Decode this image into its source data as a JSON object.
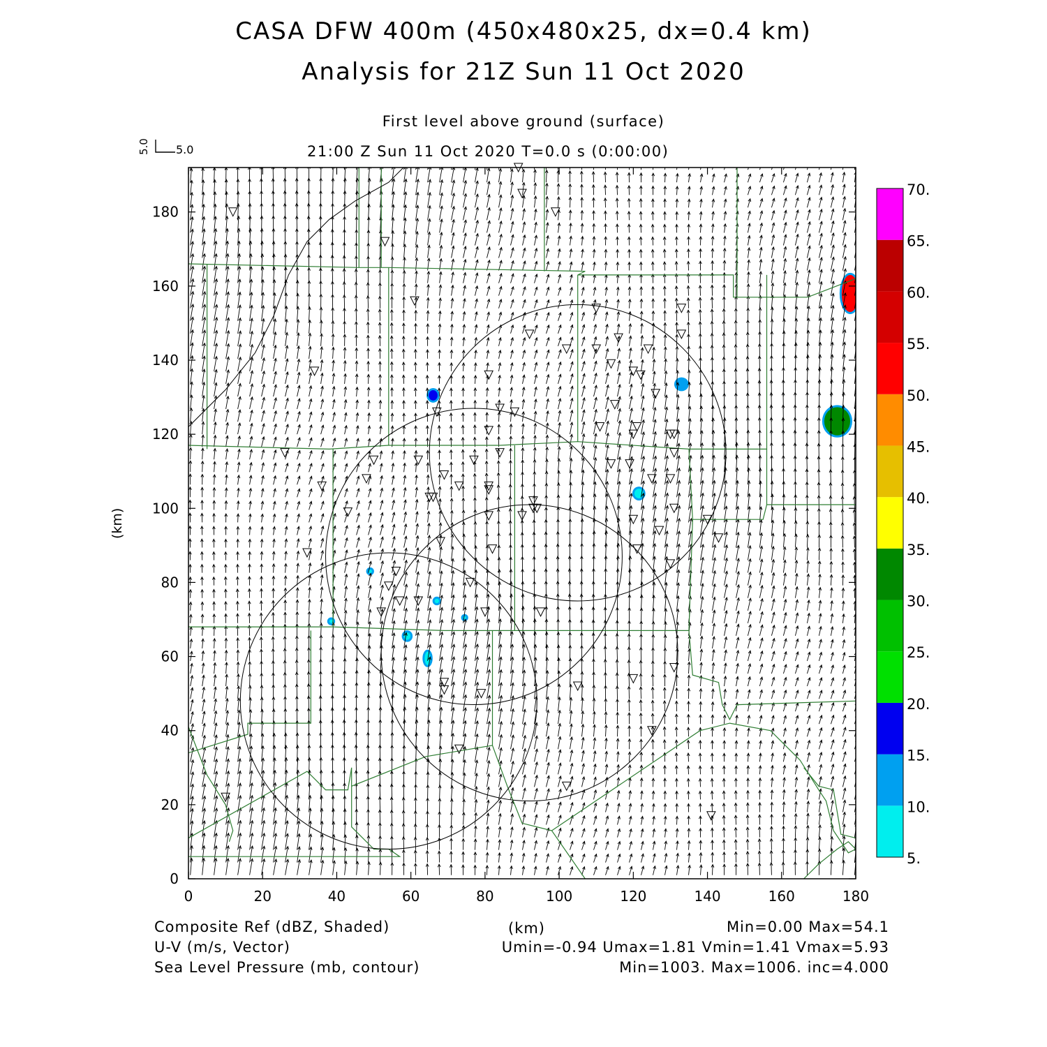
{
  "header": {
    "title": "CASA DFW 400m (450x480x25, dx=0.4 km)",
    "analysis": "Analysis for 21Z Sun 11 Oct 2020",
    "level": "First level above ground (surface)",
    "time_line": "21:00 Z Sun 11 Oct 2020   T=0.0 s (0:00:00)"
  },
  "vector_key": {
    "u_label": "5.0",
    "v_label": "5.0"
  },
  "footer": {
    "line1_left": "Composite Ref (dBZ, Shaded)",
    "line1_mid": "(km)",
    "line1_right": "Min=0.00 Max=54.1",
    "line2_left": "U-V (m/s, Vector)",
    "line2_right": "Umin=-0.94 Umax=1.81 Vmin=1.41 Vmax=5.93",
    "line3_left": "Sea Level Pressure (mb, contour)",
    "line3_right": "Min=1003. Max=1006. inc=4.000"
  },
  "chart_data": {
    "type": "heatmap",
    "ylabel": "(km)",
    "xlabel": "(km)",
    "xlim": [
      0,
      180
    ],
    "ylim": [
      0,
      192
    ],
    "x_ticks": [
      "0",
      "20",
      "40",
      "60",
      "80",
      "100",
      "120",
      "140",
      "160",
      "180"
    ],
    "y_ticks": [
      "0",
      "20",
      "40",
      "60",
      "80",
      "100",
      "120",
      "140",
      "160",
      "180"
    ],
    "colorbar": {
      "labels": [
        "5.",
        "10.",
        "15.",
        "20.",
        "25.",
        "30.",
        "35.",
        "40.",
        "45.",
        "50.",
        "55.",
        "60.",
        "65.",
        "70."
      ],
      "colors": [
        "#00eeee",
        "#00a0f0",
        "#0000f0",
        "#00e000",
        "#00c000",
        "#008800",
        "#ffff00",
        "#e6bf00",
        "#ff8c00",
        "#ff0000",
        "#d40000",
        "#bb0000",
        "#ff00ff"
      ]
    },
    "radar_circles": [
      {
        "cx": 105,
        "cy": 115,
        "r": 40
      },
      {
        "cx": 77,
        "cy": 87,
        "r": 40
      },
      {
        "cx": 92,
        "cy": 61,
        "r": 40
      },
      {
        "cx": 54,
        "cy": 48,
        "r": 40
      }
    ],
    "echoes": [
      {
        "x": 178.5,
        "y": 158,
        "rx": 2.3,
        "ry": 5,
        "color": "#ff0000"
      },
      {
        "x": 175,
        "y": 123.5,
        "rx": 3.5,
        "ry": 3.8,
        "color": "#008800"
      },
      {
        "x": 66,
        "y": 130.5,
        "rx": 1.2,
        "ry": 1.4,
        "color": "#0000f0"
      },
      {
        "x": 133,
        "y": 133.5,
        "rx": 1.4,
        "ry": 1.3,
        "color": "#00a0f0"
      },
      {
        "x": 121.5,
        "y": 104,
        "rx": 1.2,
        "ry": 1.3,
        "color": "#00eeee"
      },
      {
        "x": 59,
        "y": 65.5,
        "rx": 0.9,
        "ry": 1.0,
        "color": "#00eeee"
      },
      {
        "x": 64.5,
        "y": 59.5,
        "rx": 0.8,
        "ry": 1.8,
        "color": "#00eeee"
      },
      {
        "x": 67,
        "y": 75,
        "rx": 0.6,
        "ry": 0.6,
        "color": "#00eeee"
      },
      {
        "x": 49,
        "y": 83,
        "rx": 0.5,
        "ry": 0.5,
        "color": "#00eeee"
      },
      {
        "x": 38.5,
        "y": 69.5,
        "rx": 0.5,
        "ry": 0.5,
        "color": "#00eeee"
      },
      {
        "x": 74.5,
        "y": 70.5,
        "rx": 0.4,
        "ry": 0.4,
        "color": "#00eeee"
      }
    ],
    "wind": {
      "u_range": [
        -0.94,
        1.81
      ],
      "v_range": [
        1.41,
        5.93
      ]
    },
    "isobar": [
      [
        0,
        122
      ],
      [
        10,
        132
      ],
      [
        18,
        142
      ],
      [
        23,
        152
      ],
      [
        27,
        163
      ],
      [
        32,
        172
      ],
      [
        38,
        178
      ],
      [
        45,
        183
      ],
      [
        54,
        188
      ],
      [
        58,
        192
      ]
    ],
    "stations": [
      [
        89,
        192
      ],
      [
        12,
        180
      ],
      [
        90,
        185
      ],
      [
        99,
        180
      ],
      [
        53,
        172
      ],
      [
        61,
        156
      ],
      [
        110,
        154
      ],
      [
        133,
        154
      ],
      [
        92,
        147
      ],
      [
        116,
        146
      ],
      [
        133,
        147
      ],
      [
        110,
        143
      ],
      [
        102,
        143
      ],
      [
        124,
        143
      ],
      [
        114,
        139
      ],
      [
        34,
        137
      ],
      [
        81,
        136
      ],
      [
        120,
        137
      ],
      [
        122,
        136
      ],
      [
        126,
        131
      ],
      [
        115,
        128
      ],
      [
        84,
        127
      ],
      [
        88,
        126
      ],
      [
        67,
        126
      ],
      [
        81,
        121
      ],
      [
        111,
        122
      ],
      [
        121,
        122
      ],
      [
        120,
        120
      ],
      [
        130,
        120
      ],
      [
        131,
        120
      ],
      [
        26,
        115
      ],
      [
        84,
        115
      ],
      [
        131,
        115
      ],
      [
        50,
        113
      ],
      [
        62,
        113
      ],
      [
        77,
        113
      ],
      [
        114,
        112
      ],
      [
        119,
        112
      ],
      [
        69,
        109
      ],
      [
        48,
        108
      ],
      [
        125,
        108
      ],
      [
        130,
        108
      ],
      [
        36,
        106
      ],
      [
        73,
        106
      ],
      [
        81,
        106
      ],
      [
        81,
        105
      ],
      [
        65,
        103
      ],
      [
        66,
        103
      ],
      [
        93,
        102
      ],
      [
        93,
        100
      ],
      [
        94,
        100
      ],
      [
        131,
        100
      ],
      [
        43,
        99
      ],
      [
        81,
        98
      ],
      [
        90,
        98
      ],
      [
        120,
        97
      ],
      [
        140,
        97
      ],
      [
        127,
        94
      ],
      [
        143,
        92
      ],
      [
        32,
        88
      ],
      [
        82,
        89
      ],
      [
        121,
        89
      ],
      [
        68,
        91
      ],
      [
        56,
        83
      ],
      [
        76,
        80
      ],
      [
        54,
        79
      ],
      [
        130,
        85
      ],
      [
        57,
        75
      ],
      [
        62,
        75
      ],
      [
        52,
        72
      ],
      [
        80,
        72
      ],
      [
        95,
        72
      ],
      [
        69,
        53
      ],
      [
        69,
        51
      ],
      [
        79,
        50
      ],
      [
        105,
        52
      ],
      [
        120,
        54
      ],
      [
        131,
        57
      ],
      [
        125,
        40
      ],
      [
        73,
        35
      ],
      [
        102,
        25
      ],
      [
        10,
        22
      ],
      [
        141,
        17
      ]
    ],
    "county_lines": [
      [
        [
          0,
          166
        ],
        [
          46,
          165
        ],
        [
          54,
          165
        ],
        [
          107,
          164
        ],
        [
          105,
          163
        ],
        [
          147,
          163
        ],
        [
          147,
          157
        ],
        [
          167,
          157
        ],
        [
          180,
          162
        ]
      ],
      [
        [
          5,
          166
        ],
        [
          5,
          116
        ]
      ],
      [
        [
          46,
          192
        ],
        [
          46,
          165
        ]
      ],
      [
        [
          52,
          192
        ],
        [
          52,
          165
        ]
      ],
      [
        [
          54,
          165
        ],
        [
          54,
          117
        ]
      ],
      [
        [
          96,
          192
        ],
        [
          96,
          164
        ]
      ],
      [
        [
          148,
          192
        ],
        [
          148,
          157
        ]
      ],
      [
        [
          105,
          163
        ],
        [
          105,
          118
        ]
      ],
      [
        [
          0,
          117
        ],
        [
          38,
          116
        ],
        [
          54,
          117
        ],
        [
          84,
          117
        ],
        [
          105,
          118
        ],
        [
          135,
          116
        ],
        [
          156,
          116
        ],
        [
          156,
          163
        ]
      ],
      [
        [
          156,
          116
        ],
        [
          156,
          101
        ],
        [
          180,
          101
        ]
      ],
      [
        [
          39,
          116
        ],
        [
          39,
          68
        ]
      ],
      [
        [
          88,
          117
        ],
        [
          88,
          67
        ]
      ],
      [
        [
          135,
          116
        ],
        [
          136,
          97
        ],
        [
          155,
          97
        ],
        [
          156,
          101
        ]
      ],
      [
        [
          136,
          97
        ],
        [
          135,
          67
        ]
      ],
      [
        [
          0,
          68
        ],
        [
          39,
          68
        ],
        [
          69,
          67
        ],
        [
          88,
          67
        ],
        [
          104,
          67
        ],
        [
          135,
          67
        ]
      ],
      [
        [
          82,
          67
        ],
        [
          82,
          36
        ]
      ],
      [
        [
          135,
          67
        ],
        [
          136,
          55
        ],
        [
          143,
          53
        ],
        [
          144,
          47
        ],
        [
          146,
          43
        ],
        [
          148,
          47
        ],
        [
          180,
          48
        ]
      ],
      [
        [
          33,
          67
        ],
        [
          33,
          42
        ],
        [
          16,
          42
        ],
        [
          16,
          39
        ],
        [
          0,
          34
        ]
      ],
      [
        [
          0,
          41
        ],
        [
          5,
          28
        ],
        [
          10,
          20
        ],
        [
          12,
          13
        ],
        [
          11,
          10
        ]
      ],
      [
        [
          0,
          11
        ],
        [
          32,
          29
        ],
        [
          37,
          24
        ],
        [
          43,
          24
        ],
        [
          44,
          30
        ],
        [
          44,
          14
        ],
        [
          50,
          8
        ],
        [
          54,
          8
        ],
        [
          57,
          6
        ],
        [
          0,
          6
        ]
      ],
      [
        [
          44,
          25
        ],
        [
          64,
          33
        ],
        [
          82,
          36
        ],
        [
          86,
          25
        ],
        [
          90,
          15
        ],
        [
          98,
          13
        ],
        [
          107,
          0
        ]
      ],
      [
        [
          98,
          13
        ],
        [
          138,
          40
        ],
        [
          146,
          42
        ],
        [
          157,
          40
        ],
        [
          165,
          32
        ],
        [
          170,
          24
        ],
        [
          172,
          21
        ],
        [
          174,
          13
        ],
        [
          178,
          7
        ],
        [
          180,
          8
        ]
      ],
      [
        [
          166,
          30
        ],
        [
          170,
          25
        ],
        [
          174,
          24
        ],
        [
          176,
          12
        ],
        [
          180,
          11
        ]
      ],
      [
        [
          166,
          0
        ],
        [
          170,
          4
        ],
        [
          175,
          8
        ],
        [
          178,
          10
        ],
        [
          180,
          8
        ]
      ]
    ]
  }
}
